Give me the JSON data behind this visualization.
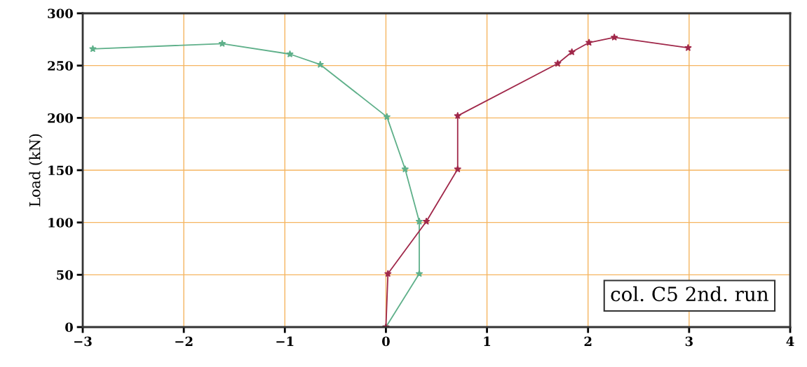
{
  "chart_data": {
    "type": "line",
    "ylabel": "Load (kN)",
    "xlim": [
      -3,
      4
    ],
    "ylim": [
      0,
      300
    ],
    "xticks": [
      -3,
      -2,
      -1,
      0,
      1,
      2,
      3,
      4
    ],
    "yticks": [
      0,
      50,
      100,
      150,
      200,
      250,
      300
    ],
    "grid": true,
    "marker": "star",
    "line_style": "solid",
    "annotations": [
      "col. C5 2nd. run"
    ],
    "series": [
      {
        "color": "#5fb08a",
        "x": [
          0,
          0.33,
          0.33,
          0.19,
          0.01,
          -0.65,
          -0.95,
          -1.62,
          -2.9
        ],
        "values": [
          0,
          51,
          101,
          151,
          201,
          251,
          261,
          271,
          266
        ]
      },
      {
        "color": "#a0284a",
        "x": [
          0,
          0.02,
          0.4,
          0.71,
          0.71,
          1.7,
          1.84,
          2.01,
          2.26,
          2.99
        ],
        "values": [
          0,
          51,
          101,
          151,
          202,
          252,
          263,
          272,
          277,
          267
        ]
      }
    ]
  }
}
